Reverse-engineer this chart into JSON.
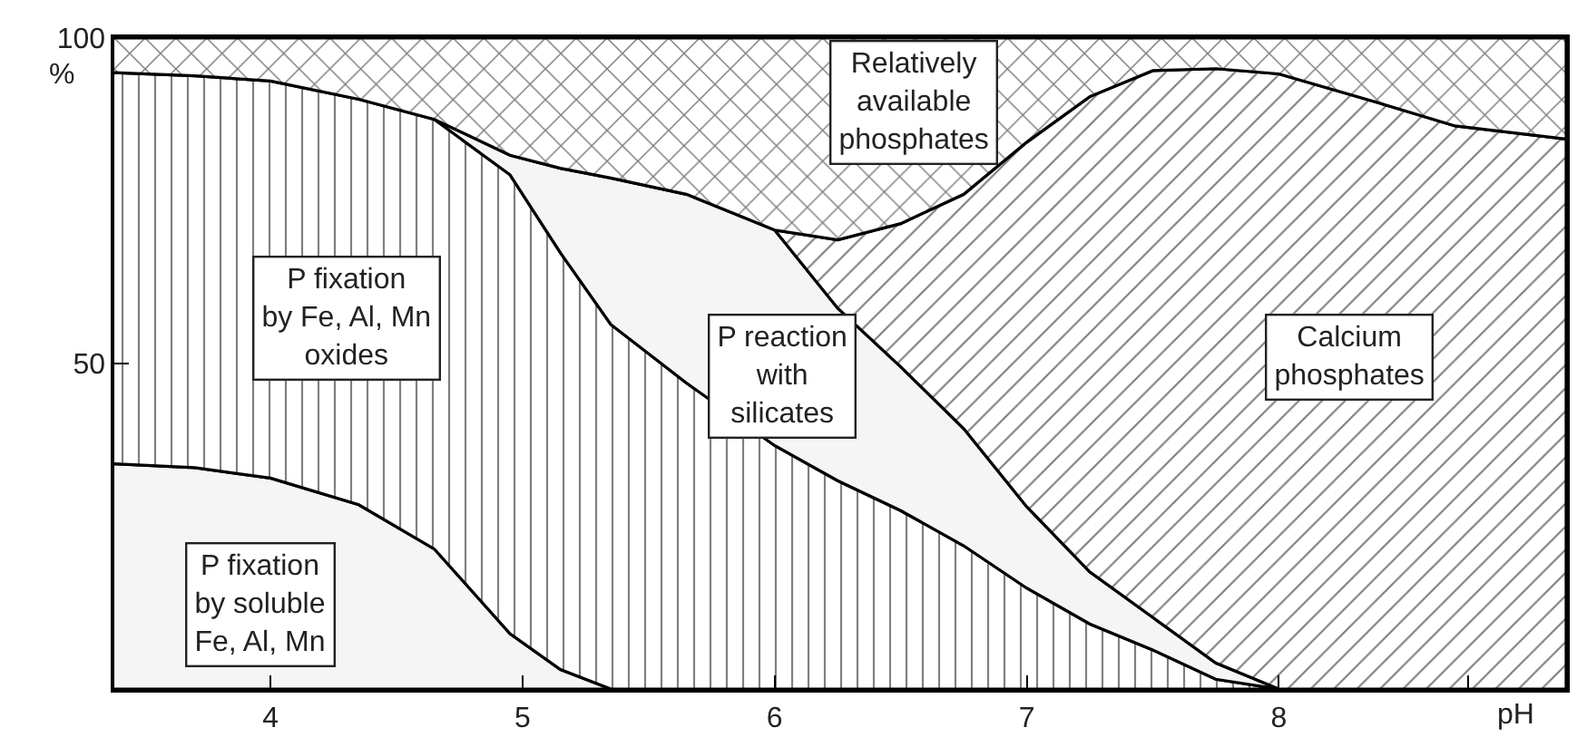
{
  "chart_data": {
    "type": "area",
    "stacked": true,
    "xlabel": "pH",
    "ylabel": "%",
    "x": [
      3.38,
      3.7,
      4.0,
      4.35,
      4.65,
      4.95,
      5.15,
      5.35,
      5.65,
      6.0,
      6.25,
      6.5,
      6.75,
      7.0,
      7.25,
      7.5,
      7.75,
      8.0,
      8.4,
      8.7,
      9.14
    ],
    "series": [
      {
        "color": "#f5f5f5",
        "values": [
          34.6,
          34,
          32.4,
          28.3,
          21.5,
          8.5,
          3,
          0,
          null,
          null,
          null,
          null,
          null,
          null,
          null,
          null,
          null,
          null,
          null,
          null,
          null
        ]
      },
      {
        "color": "#000000",
        "values": [
          60.1,
          60.2,
          61,
          62.3,
          66,
          70.5,
          64,
          56,
          47,
          37.4,
          32,
          27.4,
          22,
          15.5,
          10,
          6,
          1.5,
          0,
          null,
          null,
          null
        ]
      },
      {
        "color": "#f5f5f5",
        "values": [
          null,
          null,
          null,
          null,
          0,
          3,
          13,
          22.5,
          29,
          33.1,
          26.5,
          22.1,
          18,
          12.5,
          8,
          5,
          2.5,
          0,
          null,
          null,
          null
        ]
      },
      {
        "color": "#000000",
        "values": [
          null,
          null,
          null,
          null,
          null,
          null,
          null,
          null,
          null,
          0,
          10.5,
          22,
          36,
          56,
          73,
          84,
          91.3,
          94.5,
          90,
          86.5,
          84.5
        ]
      },
      {
        "color": "#000000",
        "values": [
          5.3,
          5.8,
          6.6,
          9.4,
          12.5,
          18,
          20,
          21.5,
          24,
          29.5,
          31,
          28.5,
          24,
          16,
          9,
          5,
          4.7,
          5.5,
          10,
          13.5,
          15.5
        ]
      }
    ],
    "xlim": [
      3.38,
      9.14
    ],
    "ylim": [
      0,
      100
    ],
    "xticks": [
      4,
      5,
      6,
      7,
      8,
      {
        "value": 8.75,
        "label": null
      }
    ],
    "yticks": [
      50,
      100
    ],
    "annotations": [
      "P fixation\nby soluble\nFe, Al, Mn",
      "P fixation\nby Fe, Al, Mn\noxides",
      "P reaction\nwith\nsilicates",
      "Relatively\navailable\nphosphates",
      "Calcium\nphosphates"
    ]
  }
}
